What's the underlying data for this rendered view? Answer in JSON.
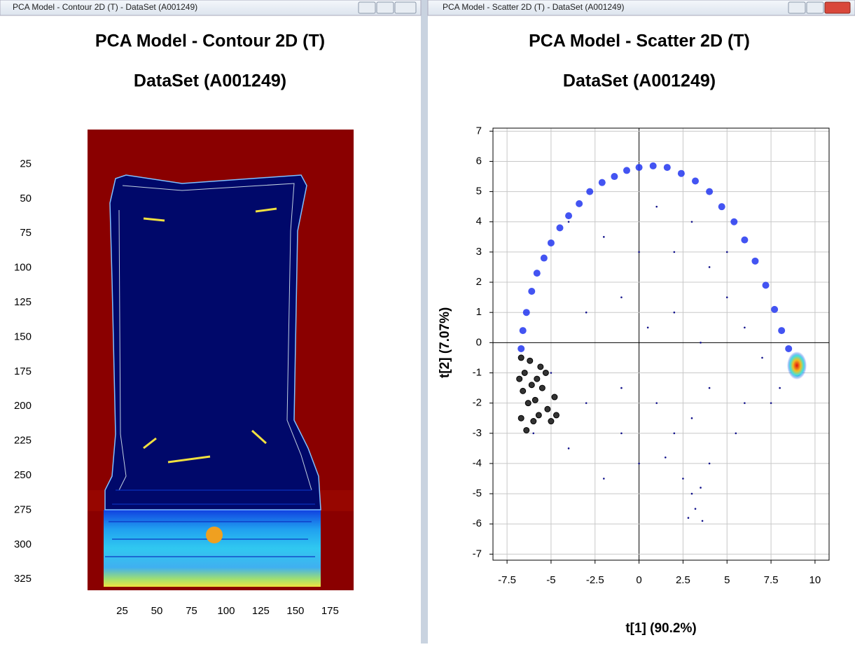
{
  "windows": [
    {
      "title": "PCA Model - Contour 2D (T) - DataSet (A001249)"
    },
    {
      "title": "PCA Model - Scatter 2D (T) - DataSet (A001249)"
    }
  ],
  "chart_data": [
    {
      "type": "contour",
      "title": "PCA Model - Contour 2D (T)",
      "subtitle": "DataSet (A001249)",
      "xlim": [
        0,
        192
      ],
      "ylim": [
        0,
        333
      ],
      "y_inverted": true,
      "xticks": [
        25,
        50,
        75,
        100,
        125,
        150,
        175
      ],
      "yticks": [
        25,
        50,
        75,
        100,
        125,
        150,
        175,
        200,
        225,
        250,
        275,
        300,
        325
      ]
    },
    {
      "type": "scatter",
      "title": "PCA Model - Scatter 2D (T)",
      "subtitle": "DataSet (A001249)",
      "xlabel": "t[1] (90.2%)",
      "ylabel": "t[2] (7.07%)",
      "xlim": [
        -8.3,
        10.8
      ],
      "ylim": [
        -7.2,
        7.1
      ],
      "xticks": [
        -7.5,
        -5,
        -2.5,
        0,
        2.5,
        5,
        7.5,
        10
      ],
      "yticks": [
        -7,
        -6,
        -5,
        -4,
        -3,
        -2,
        -1,
        0,
        1,
        2,
        3,
        4,
        5,
        6,
        7
      ],
      "grid": true,
      "series": [
        {
          "color": "#2236f0",
          "marker_size": 5,
          "x": [
            -6.7,
            -6.6,
            -6.4,
            -6.1,
            -5.8,
            -5.4,
            -5.0,
            -4.5,
            -4.0,
            -3.4,
            -2.8,
            -2.1,
            -1.4,
            -0.7,
            0,
            0.8,
            1.6,
            2.4,
            3.2,
            4.0,
            4.7,
            5.4,
            6.0,
            6.6,
            7.2,
            7.7,
            8.1,
            8.5,
            8.8,
            9.0
          ],
          "y": [
            -0.2,
            0.4,
            1.0,
            1.7,
            2.3,
            2.8,
            3.3,
            3.8,
            4.2,
            4.6,
            5.0,
            5.3,
            5.5,
            5.7,
            5.8,
            5.85,
            5.8,
            5.6,
            5.35,
            5.0,
            4.5,
            4.0,
            3.4,
            2.7,
            1.9,
            1.1,
            0.4,
            -0.2,
            -0.7,
            -1.0
          ]
        },
        {
          "color": "#10108a",
          "marker_size": 1.3,
          "x": [
            -4,
            -2,
            0,
            1,
            2,
            3,
            4,
            5,
            -3,
            -1,
            0.5,
            2,
            3.5,
            5,
            6,
            7,
            -5,
            -3,
            -1,
            1,
            2,
            3,
            4,
            6,
            7.5,
            8,
            -6,
            -4,
            -1,
            0,
            1.5,
            2.5,
            3,
            3.2,
            3.5,
            2.8,
            3.6,
            4,
            -2,
            5.5
          ],
          "y": [
            4,
            3.5,
            3,
            4.5,
            3,
            4,
            2.5,
            3,
            1,
            1.5,
            0.5,
            1,
            0,
            1.5,
            0.5,
            -0.5,
            -1,
            -2,
            -1.5,
            -2,
            -3,
            -2.5,
            -1.5,
            -2,
            -2,
            -1.5,
            -3,
            -3.5,
            -3,
            -4,
            -3.8,
            -4.5,
            -5,
            -5.5,
            -4.8,
            -5.8,
            -5.9,
            -4,
            -4.5,
            -3
          ]
        },
        {
          "color": "#333333",
          "marker_size": 4,
          "x": [
            -6.7,
            -6.5,
            -6.2,
            -5.8,
            -6.6,
            -6.3,
            -5.5,
            -6.7,
            -6.0,
            -5.2,
            -4.8,
            -5.6,
            -6.4,
            -5.0,
            -6.8,
            -5.9,
            -5.3,
            -6.1,
            -4.7,
            -5.7
          ],
          "y": [
            -0.5,
            -1.0,
            -0.6,
            -1.2,
            -1.6,
            -2.0,
            -1.5,
            -2.5,
            -2.6,
            -2.2,
            -1.8,
            -0.8,
            -2.9,
            -2.6,
            -1.2,
            -1.9,
            -1.0,
            -1.4,
            -2.4,
            -2.4
          ]
        }
      ]
    }
  ]
}
